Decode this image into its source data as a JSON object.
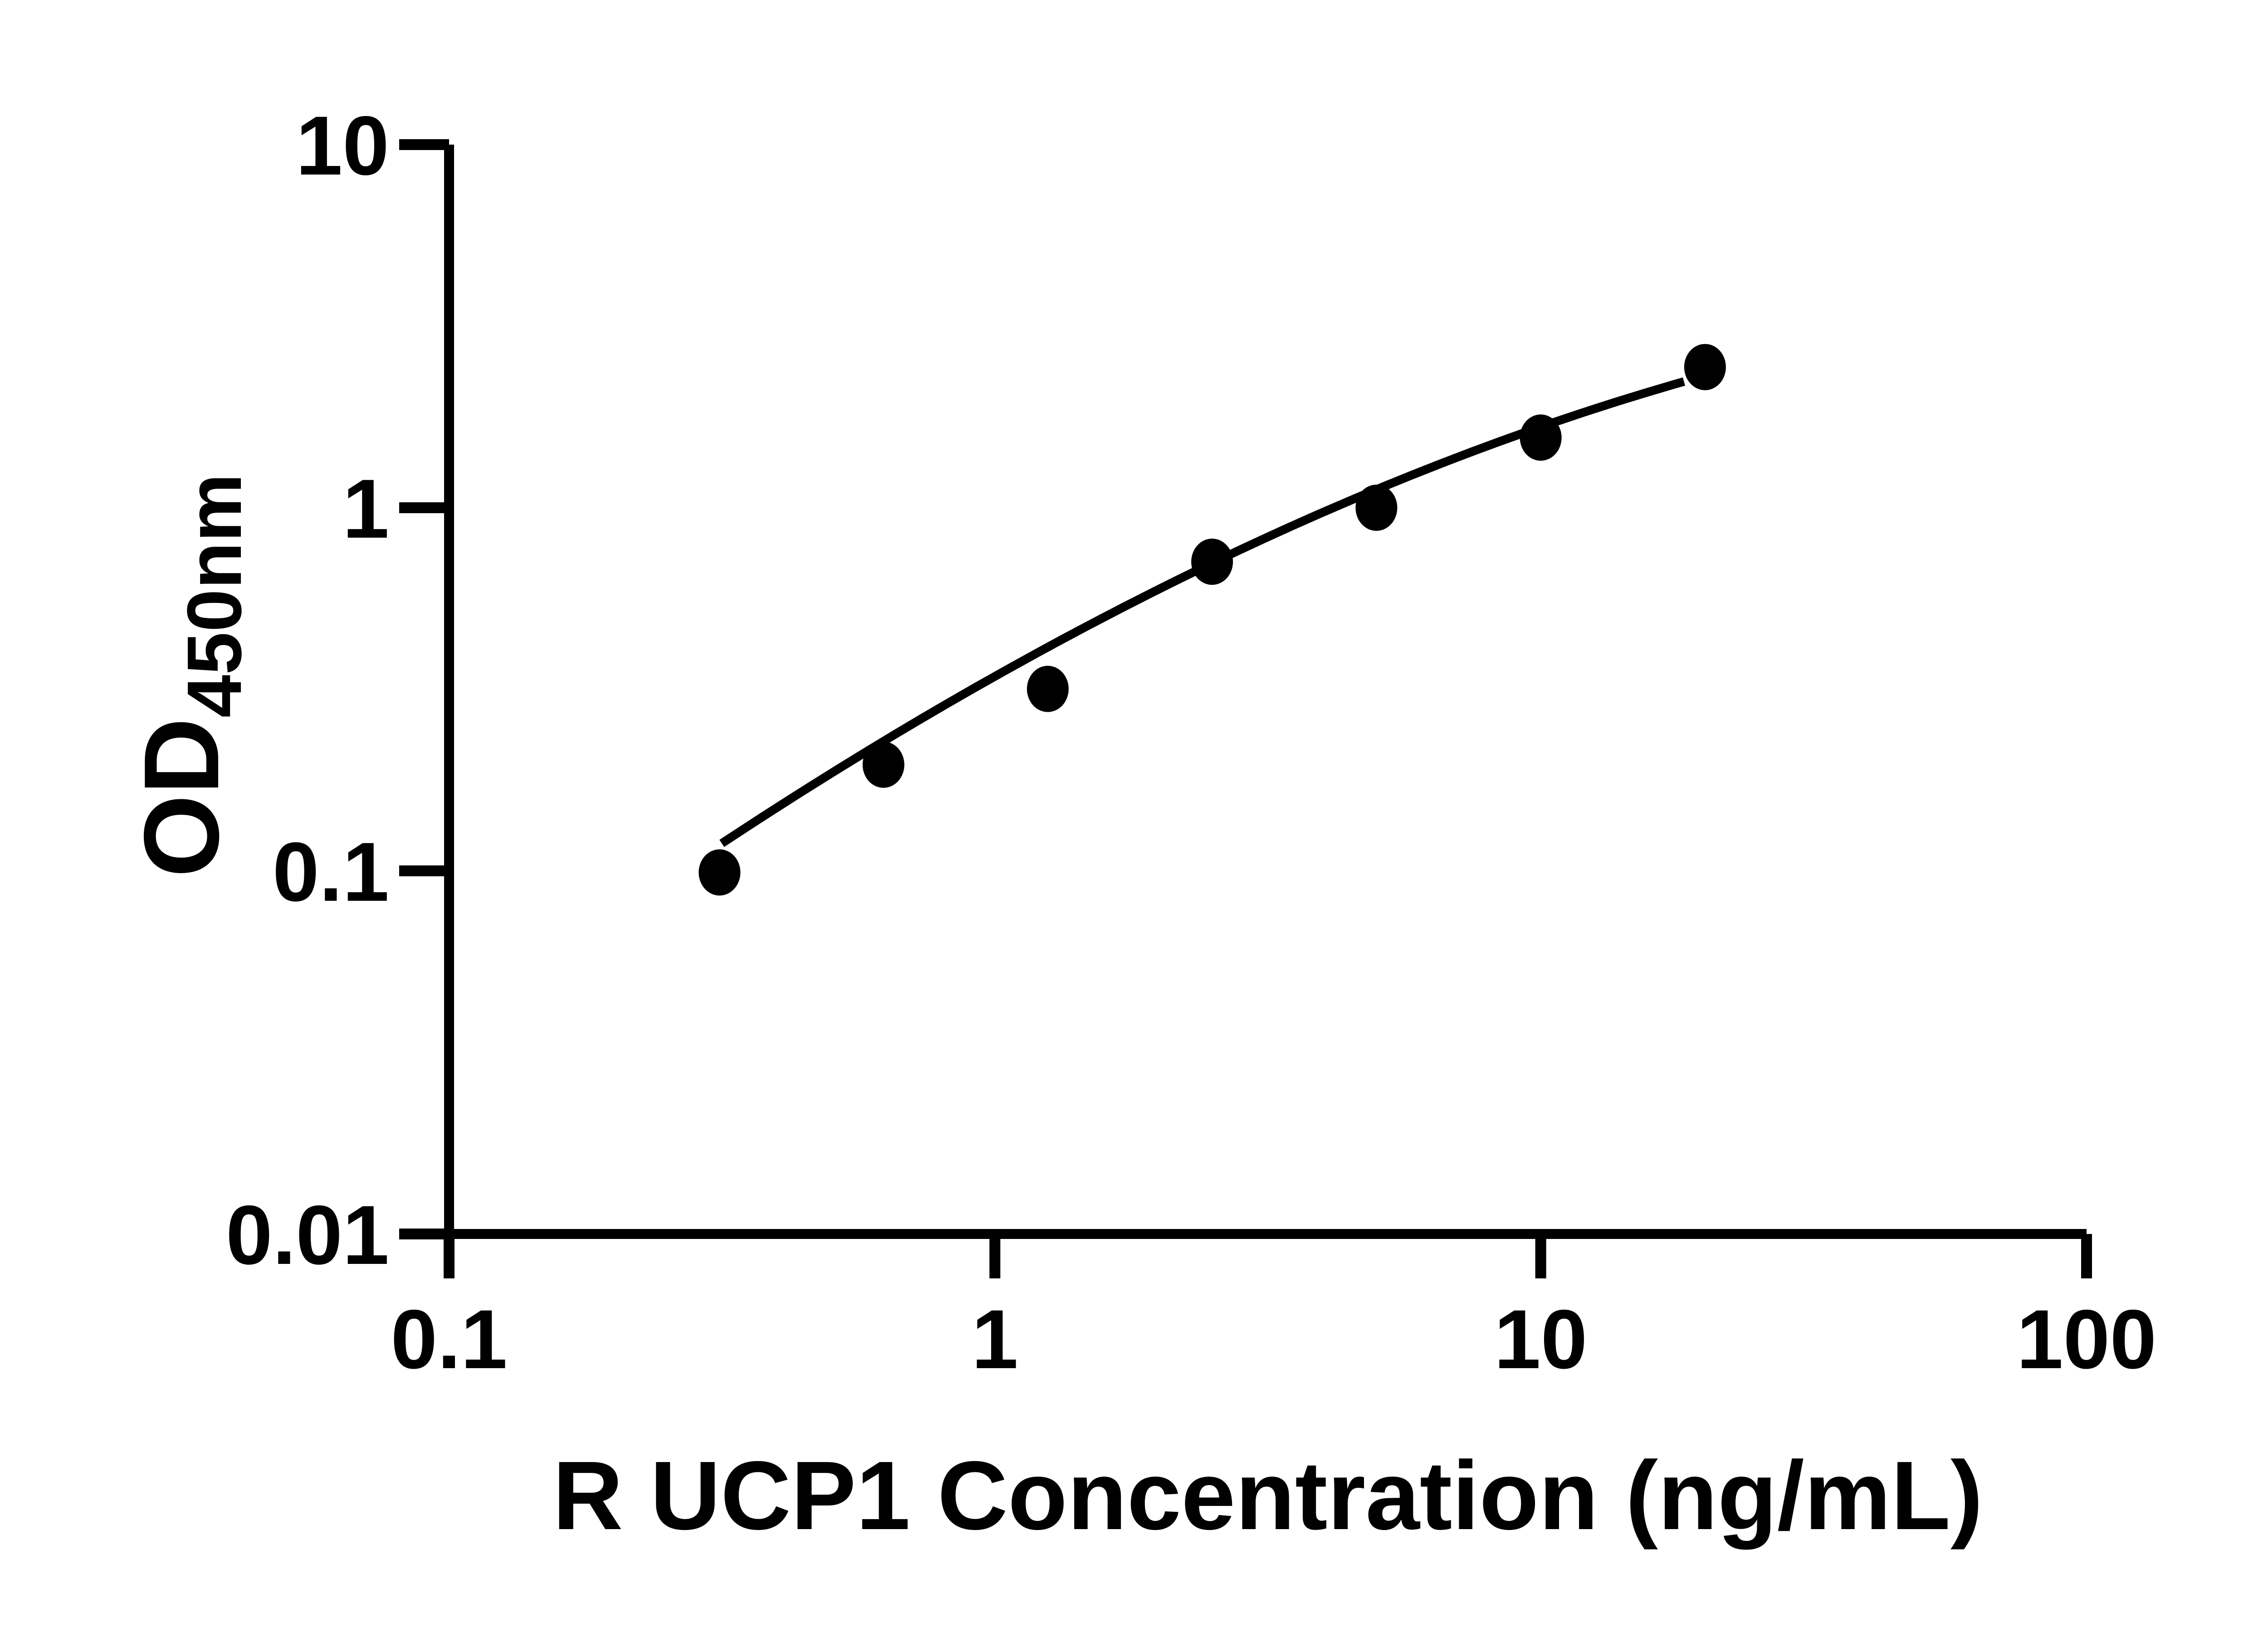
{
  "figure": {
    "background": "#ffffff",
    "ink": "#000000"
  },
  "chart_data": {
    "type": "scatter",
    "title": "",
    "xlabel": "R UCP1 Concentration (ng/mL)",
    "ylabel_main": "OD",
    "ylabel_sub": "450nm",
    "x_scale": "log10",
    "y_scale": "log10",
    "xlim": [
      0.1,
      100
    ],
    "ylim": [
      0.01,
      10
    ],
    "grid": "off",
    "legend": "none",
    "x_ticks": [
      {
        "value": 0.1,
        "label": "0.1"
      },
      {
        "value": 1,
        "label": "1"
      },
      {
        "value": 10,
        "label": "10"
      },
      {
        "value": 100,
        "label": "100"
      }
    ],
    "y_ticks": [
      {
        "value": 0.01,
        "label": "0.01"
      },
      {
        "value": 0.1,
        "label": "0.1"
      },
      {
        "value": 1,
        "label": "1"
      },
      {
        "value": 10,
        "label": "10"
      }
    ],
    "series": [
      {
        "name": "standard-curve-points",
        "marker": "filled-circle",
        "color": "#000000",
        "points": [
          {
            "x": 0.313,
            "y": 0.099
          },
          {
            "x": 0.625,
            "y": 0.196
          },
          {
            "x": 1.25,
            "y": 0.317
          },
          {
            "x": 2.5,
            "y": 0.71
          },
          {
            "x": 5,
            "y": 1.0
          },
          {
            "x": 10,
            "y": 1.56
          },
          {
            "x": 20,
            "y": 2.44
          }
        ]
      }
    ],
    "fit_curve": {
      "name": "four-parameter-fit-line",
      "shape": "quadratic-through-anchors",
      "color": "#000000",
      "anchors": [
        {
          "x": 0.316,
          "y": 0.119
        },
        {
          "x": 2.5,
          "y": 0.704
        },
        {
          "x": 18.3,
          "y": 2.226
        }
      ]
    }
  }
}
